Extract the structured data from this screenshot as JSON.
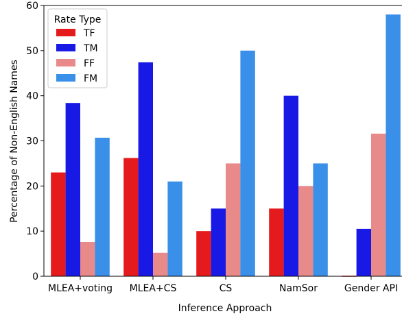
{
  "chart_data": {
    "type": "bar",
    "title": "",
    "xlabel": "Inference Approach",
    "ylabel": "Percentage of Non-English Names",
    "ylim": [
      0,
      60
    ],
    "yticks": [
      0,
      10,
      20,
      30,
      40,
      50,
      60
    ],
    "categories": [
      "MLEA+voting",
      "MLEA+CS",
      "CS",
      "NamSor",
      "Gender API"
    ],
    "legend": {
      "title": "Rate Type",
      "placement": "top-left"
    },
    "grid": false,
    "series": [
      {
        "name": "TF",
        "color": "#e41a1c",
        "values": [
          23,
          26.2,
          10,
          15,
          0
        ]
      },
      {
        "name": "TM",
        "color": "#1919e6",
        "values": [
          38.4,
          47.4,
          15,
          40,
          10.5
        ]
      },
      {
        "name": "FF",
        "color": "#e88a8a",
        "values": [
          7.6,
          5.2,
          25,
          20,
          31.6
        ]
      },
      {
        "name": "FM",
        "color": "#3a8fe8",
        "values": [
          30.7,
          21,
          50,
          25,
          58
        ]
      }
    ]
  }
}
